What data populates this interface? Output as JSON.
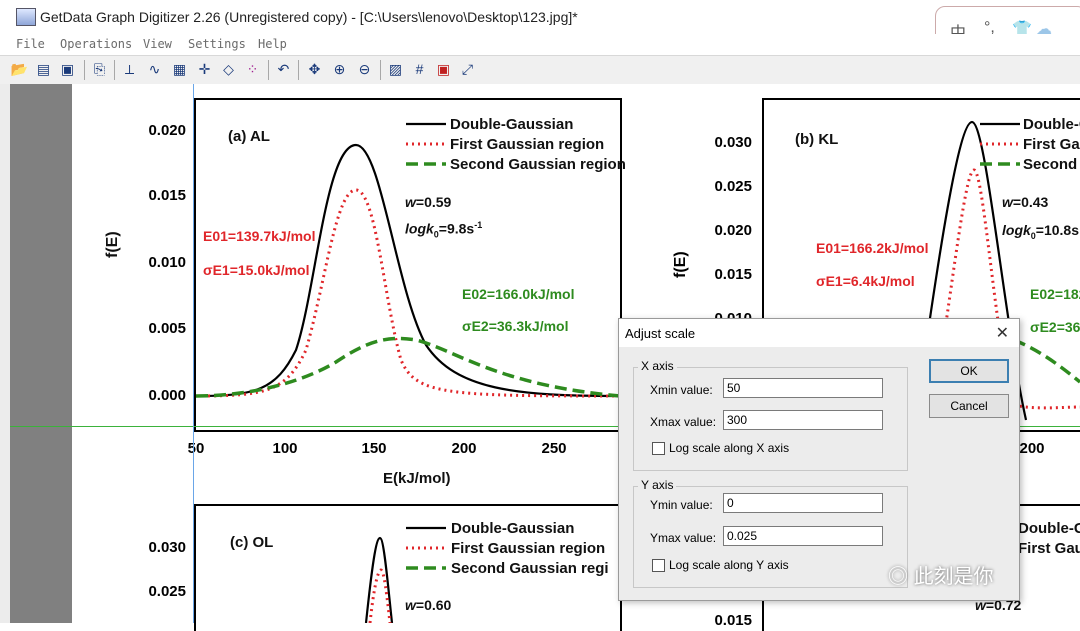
{
  "window": {
    "title": "GetData Graph Digitizer 2.26 (Unregistered copy) - [C:\\Users\\lenovo\\Desktop\\123.jpg]*"
  },
  "ime": {
    "char1": "中",
    "char2": "°,"
  },
  "menu": [
    "File",
    "Operations",
    "View",
    "Settings",
    "Help"
  ],
  "toolbar_icons": [
    "open-icon",
    "scan-icon",
    "save-icon",
    "copy-icon",
    "axes-icon",
    "digitize-line-icon",
    "digitize-area-icon",
    "point-capture-icon",
    "eraser-icon",
    "grid-points-icon",
    "undo-icon",
    "pan-icon",
    "zoom-in-icon",
    "zoom-out-icon",
    "image-icon",
    "grid-icon",
    "points-icon",
    "graph-icon"
  ],
  "plots": {
    "a": {
      "label": "(a) AL",
      "legend": [
        "Double-Gaussian",
        "First Gaussian region",
        "Second Gaussian region"
      ],
      "yticks": [
        "0.020",
        "0.015",
        "0.010",
        "0.005",
        "0.000"
      ],
      "xticks": [
        "50",
        "100",
        "150",
        "200",
        "250"
      ],
      "ylabel": "f(E)",
      "xlabel": "E(kJ/mol)",
      "w": "=0.59",
      "logk_pre": "logk",
      "logk_sub": "0",
      "logk_val": "=9.8s",
      "logk_sup": "-1",
      "e01": "E01=139.7kJ/mol",
      "se1": "σE1=15.0kJ/mol",
      "e02": "E02=166.0kJ/mol",
      "se2": "σE2=36.3kJ/mol"
    },
    "b": {
      "label": "(b) KL",
      "legend": [
        "Double-Ga",
        "First Ga",
        "Second"
      ],
      "yticks": [
        "0.030",
        "0.025",
        "0.020",
        "0.015",
        "0.010"
      ],
      "xticks": [
        "200"
      ],
      "w": "=0.43",
      "logk_pre": "logk",
      "logk_sub": "0",
      "logk_val": "=10.8s",
      "e01": "E01=166.2kJ/mol",
      "se1": "σE1=6.4kJ/mol",
      "e02": "E02=182",
      "se2": "σE2=36."
    },
    "c": {
      "label": "(c) OL",
      "legend": [
        "Double-Gaussian",
        "First Gaussian region",
        "Second Gaussian regi"
      ],
      "yticks": [
        "0.030",
        "0.025"
      ],
      "w": "=0.60"
    },
    "d": {
      "legend": [
        "Double-G",
        "First Gau"
      ],
      "ytick": "0.015",
      "w": "=0.72"
    }
  },
  "dialog": {
    "title": "Adjust scale",
    "close": "✕",
    "xaxis_label": "X axis",
    "xmin_label": "Xmin value:",
    "xmin_value": "50",
    "xmax_label": "Xmax value:",
    "xmax_value": "300",
    "xlog_label": "Log scale along X axis",
    "yaxis_label": "Y axis",
    "ymin_label": "Ymin value:",
    "ymin_value": "0",
    "ymax_label": "Ymax value:",
    "ymax_value": "0.025",
    "ylog_label": "Log scale along Y axis",
    "ok": "OK",
    "cancel": "Cancel"
  },
  "watermark": "此刻是你"
}
